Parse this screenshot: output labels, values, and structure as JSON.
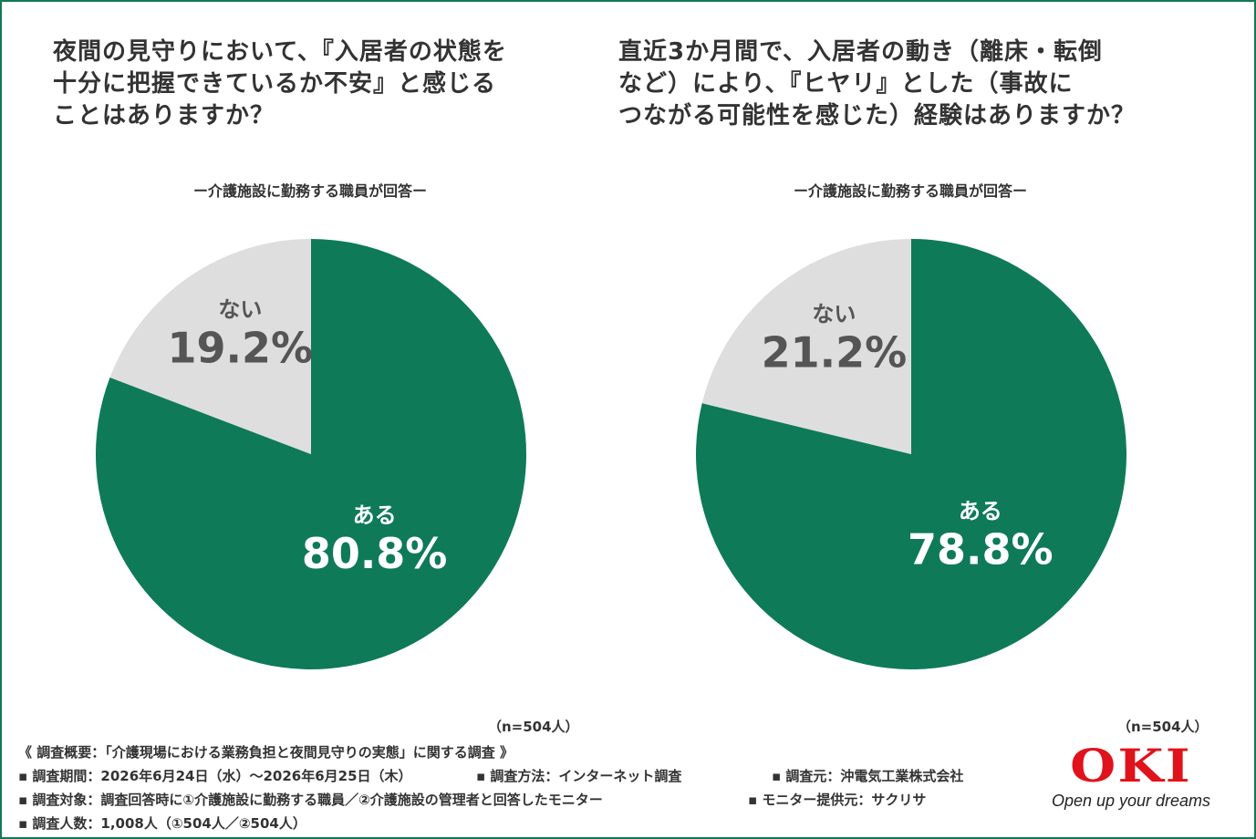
{
  "colors": {
    "yes": "#0e7a58",
    "no": "#dedede",
    "frame": "#117a52",
    "logo": "#e0121b"
  },
  "left": {
    "title": "夜間の見守りにおいて、『入居者の状態を\n十分に把握できているか不安』と感じる\nことはありますか？",
    "subtitle": "ー介護施設に勤務する職員が回答ー",
    "n_label": "（n=504人）"
  },
  "right": {
    "title": "直近3か月間で、入居者の動き（離床・転倒\nなど）により、『ヒヤリ』とした（事故に\nつながる可能性を感じた）経験はありますか？",
    "subtitle": "ー介護施設に勤務する職員が回答ー",
    "n_label": "（n=504人）"
  },
  "chart_data": [
    {
      "type": "pie",
      "title": "夜間の見守りにおいて、『入居者の状態を十分に把握できているか不安』と感じることはありますか？",
      "slices": [
        {
          "label": "ある",
          "value": 80.8,
          "display": "80.8%"
        },
        {
          "label": "ない",
          "value": 19.2,
          "display": "19.2%"
        }
      ]
    },
    {
      "type": "pie",
      "title": "直近3か月間で、入居者の動き（離床・転倒など）により、『ヒヤリ』とした（事故につながる可能性を感じた）経験はありますか？",
      "slices": [
        {
          "label": "ある",
          "value": 78.8,
          "display": "78.8%"
        },
        {
          "label": "ない",
          "value": 21.2,
          "display": "21.2%"
        }
      ]
    }
  ],
  "notes": {
    "overview": "《 調査概要：「介護現場における業務負担と夜間見守りの実態」に関する調査 》",
    "period": "▪ 調査期間：2026年6月24日（水）～2026年6月25日（木）",
    "method": "▪ 調査方法：インターネット調査",
    "source": "▪ 調査元：沖電気工業株式会社",
    "target": "▪ 調査対象：調査回答時に①介護施設に勤務する職員／②介護施設の管理者と回答したモニター",
    "provider": "▪ モニター提供元：サクリサ",
    "count": "▪ 調査人数：1,008人（①504人／②504人）"
  },
  "logo": {
    "word": "OKI",
    "tagline": "Open up your dreams"
  }
}
